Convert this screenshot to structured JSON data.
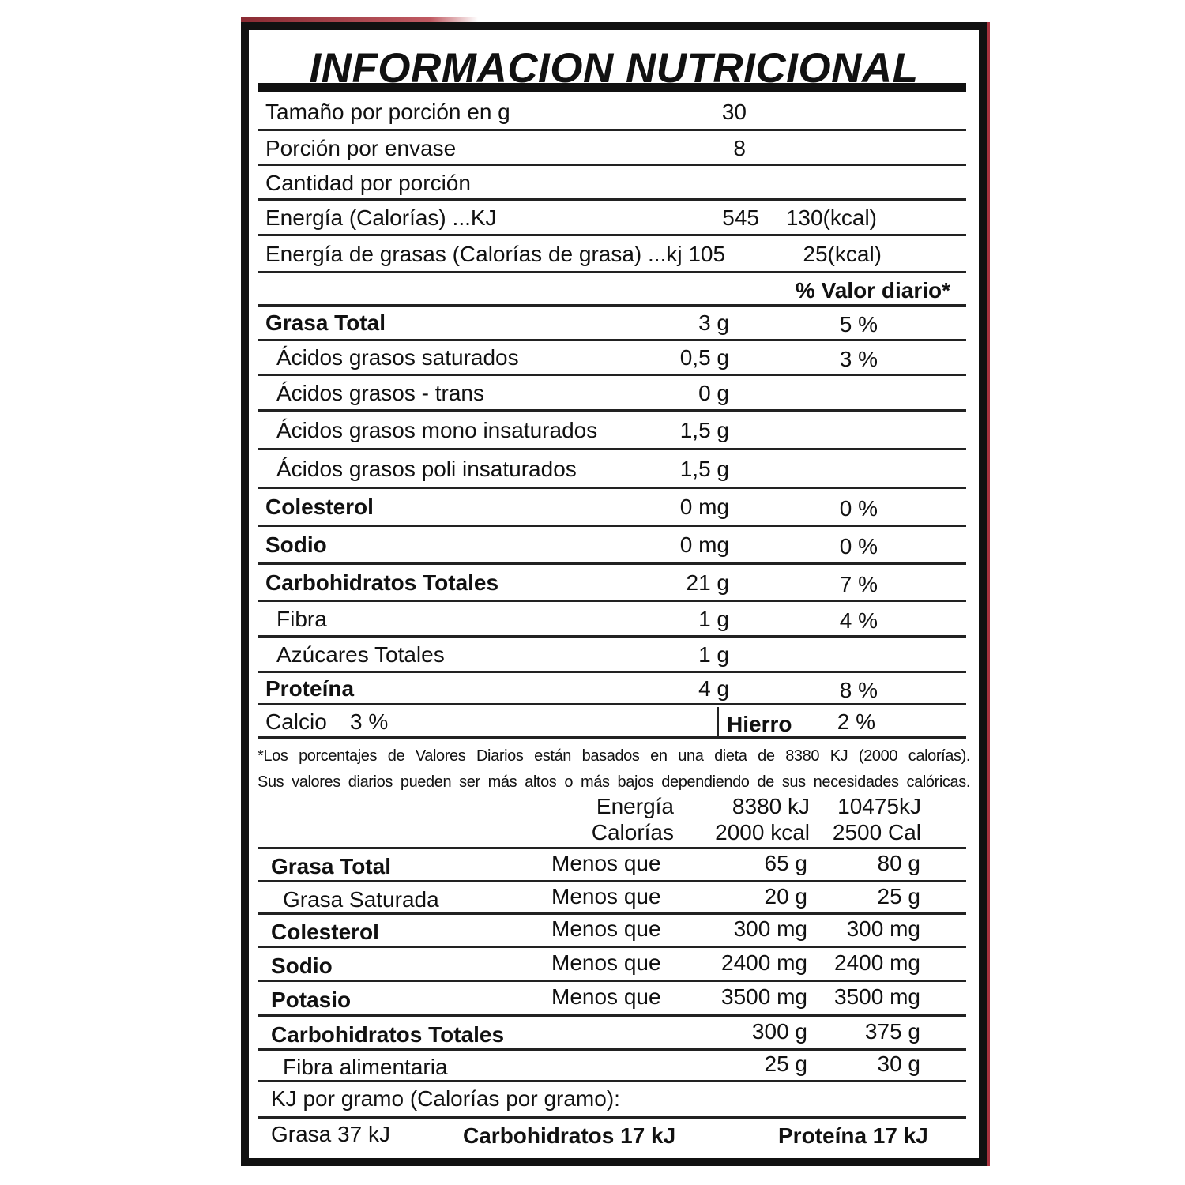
{
  "title": "INFORMACION NUTRICIONAL",
  "serving": [
    {
      "label": "Tamaño por porción en g",
      "value": "30"
    },
    {
      "label": "Porción por envase",
      "value": "8"
    },
    {
      "label": "Cantidad por porción"
    },
    {
      "label": "Energía (Calorías) ...KJ",
      "value": "545",
      "extra": "130(kcal)"
    },
    {
      "label": "Energía de grasas (Calorías de grasa) ...kj 105",
      "extra": "25(kcal)"
    }
  ],
  "dv_header": "% Valor diario*",
  "nutrients": [
    {
      "label": "Grasa Total",
      "amount": "3 g",
      "dv": "5 %",
      "bold": true
    },
    {
      "label": "Ácidos grasos saturados",
      "amount": "0,5 g",
      "dv": "3 %",
      "indent": true
    },
    {
      "label": "Ácidos grasos - trans",
      "amount": "0 g",
      "indent": true
    },
    {
      "label": "Ácidos grasos mono insaturados",
      "amount": "1,5 g",
      "indent": true
    },
    {
      "label": "Ácidos grasos poli insaturados",
      "amount": "1,5 g",
      "indent": true
    },
    {
      "label": "Colesterol",
      "amount": "0 mg",
      "dv": "0 %",
      "bold": true
    },
    {
      "label": "Sodio",
      "amount": "0 mg",
      "dv": "0 %",
      "bold": true
    },
    {
      "label": "Carbohidratos Totales",
      "amount": "21 g",
      "dv": "7 %",
      "bold": true
    },
    {
      "label": "Fibra",
      "amount": "1 g",
      "dv": "4 %",
      "indent": true
    },
    {
      "label": "Azúcares Totales",
      "amount": "1 g",
      "indent": true
    },
    {
      "label": "Proteína",
      "amount": "4 g",
      "dv": "8 %",
      "bold": true
    }
  ],
  "minerals": {
    "calcio_label": "Calcio",
    "calcio_value": "3 %",
    "hierro_label": "Hierro",
    "hierro_value": "2 %"
  },
  "footnote": [
    "*Los porcentajes de Valores Diarios están basados en una dieta de 8380 KJ (2000 calorías).",
    "Sus valores diarios pueden ser más altos o más bajos dependiendo de sus necesidades calóricas."
  ],
  "reference_header": [
    {
      "label": "Energía",
      "col1": "8380 kJ",
      "col2": "10475kJ"
    },
    {
      "label": "Calorías",
      "col1": "2000 kcal",
      "col2": "2500 Cal"
    }
  ],
  "reference": [
    {
      "label": "Grasa Total",
      "qual": "Menos que",
      "col1": "65 g",
      "col2": "80 g",
      "bold": true
    },
    {
      "label": "Grasa Saturada",
      "qual": "Menos que",
      "col1": "20 g",
      "col2": "25 g",
      "indent": true
    },
    {
      "label": "Colesterol",
      "qual": "Menos que",
      "col1": "300 mg",
      "col2": "300 mg",
      "bold": true
    },
    {
      "label": "Sodio",
      "qual": "Menos que",
      "col1": "2400 mg",
      "col2": "2400 mg",
      "bold": true
    },
    {
      "label": "Potasio",
      "qual": "Menos que",
      "col1": "3500 mg",
      "col2": "3500 mg",
      "bold": true
    },
    {
      "label": "Carbohidratos Totales",
      "col1": "300 g",
      "col2": "375 g",
      "bold": true
    },
    {
      "label": "Fibra alimentaria",
      "col1": "25 g",
      "col2": "30 g",
      "indent": true
    }
  ],
  "per_gram": {
    "heading": "KJ por gramo (Calorías por gramo):",
    "grasa": "Grasa 37 kJ",
    "carbohidratos": "Carbohidratos 17 kJ",
    "proteina": "Proteína 17 kJ"
  }
}
